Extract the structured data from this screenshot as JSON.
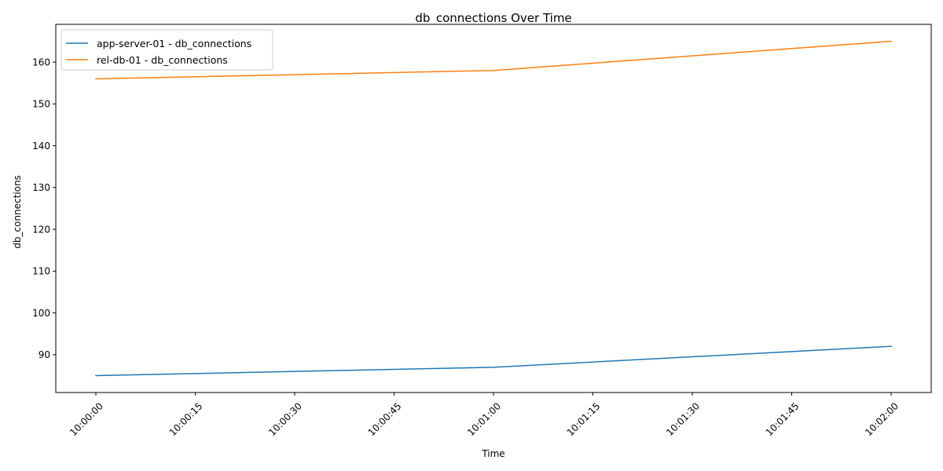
{
  "chart_data": {
    "type": "line",
    "title": "db_connections Over Time",
    "xlabel": "Time",
    "ylabel": "db_connections",
    "x": [
      "10:00:00",
      "10:01:00",
      "10:02:00"
    ],
    "xticks": [
      "10:00:00",
      "10:00:15",
      "10:00:30",
      "10:00:45",
      "10:01:00",
      "10:01:15",
      "10:01:30",
      "10:01:45",
      "10:02:00"
    ],
    "yticks": [
      90,
      100,
      110,
      120,
      130,
      140,
      150,
      160
    ],
    "ylim": [
      80.96,
      169.04
    ],
    "grid": false,
    "legend_position": "top-left",
    "series": [
      {
        "name": "app-server-01 - db_connections",
        "color": "#1f77b4",
        "values": [
          85,
          87,
          92
        ]
      },
      {
        "name": "rel-db-01 - db_connections",
        "color": "#ff7f0e",
        "values": [
          156,
          158,
          165
        ]
      }
    ]
  }
}
